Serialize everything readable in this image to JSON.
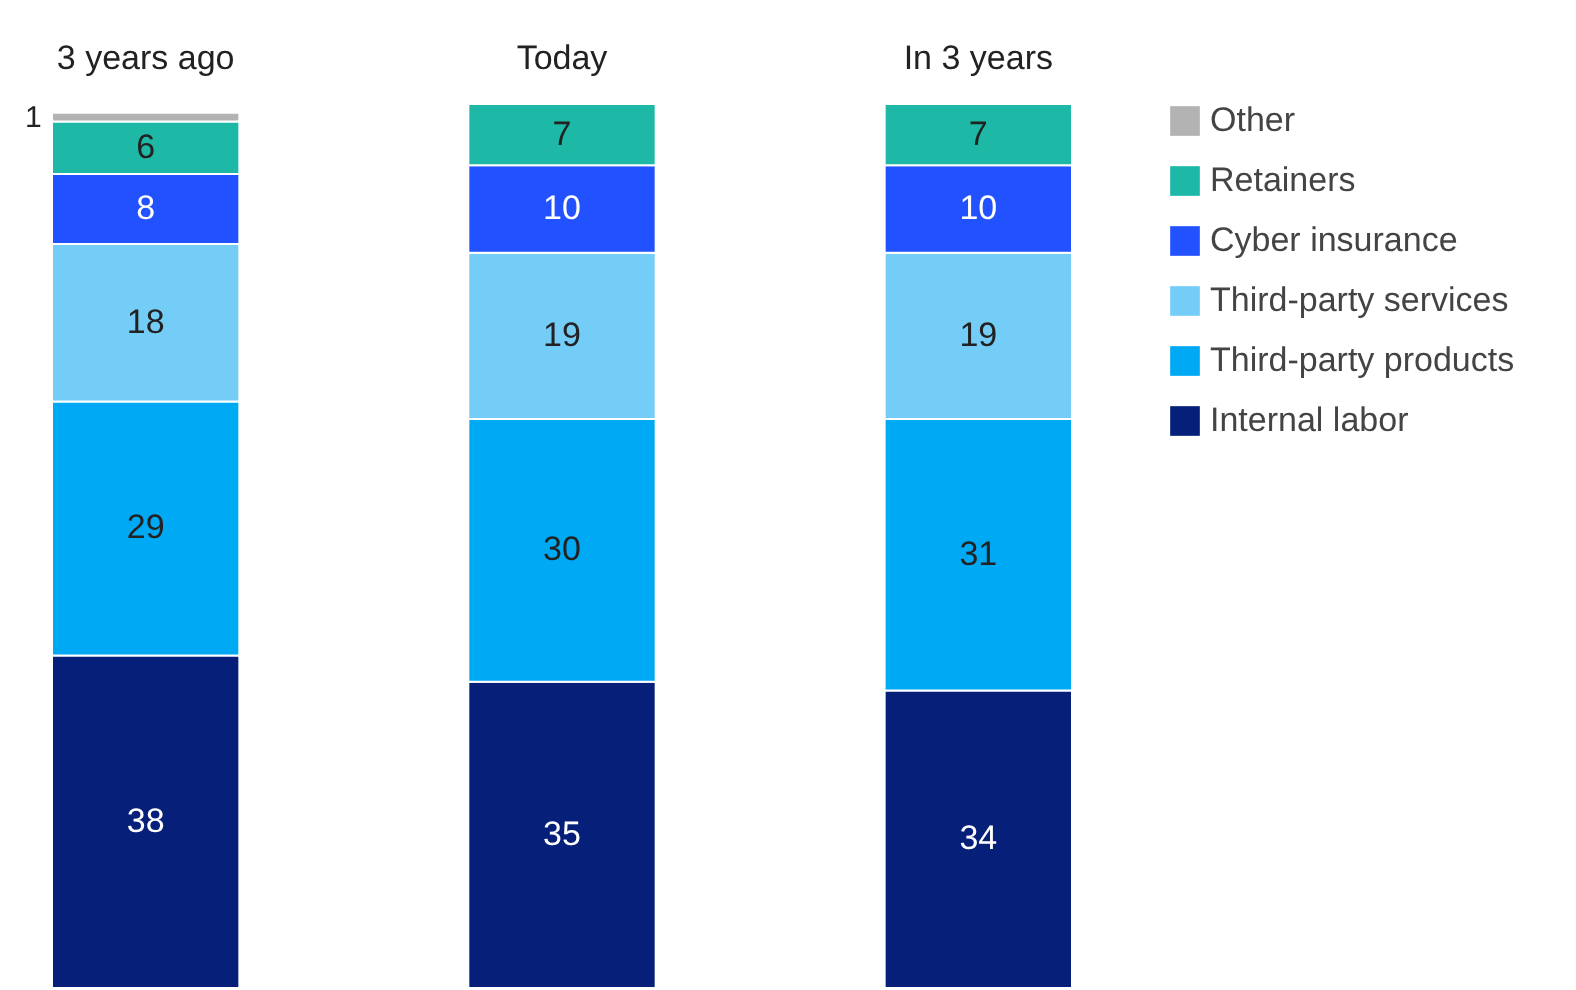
{
  "chart_data": {
    "type": "bar",
    "stacked": true,
    "data_labels": true,
    "legend": "top right",
    "grid": false,
    "categories": [
      "3 years ago",
      "Today",
      "In 3 years"
    ],
    "series": [
      {
        "name": "Internal labor",
        "color": "#061f79",
        "values": [
          38,
          35,
          34
        ]
      },
      {
        "name": "Third-party products",
        "color": "#00a9f4",
        "values": [
          29,
          30,
          31
        ]
      },
      {
        "name": "Third-party services",
        "color": "#73cdf7",
        "values": [
          18,
          19,
          19
        ]
      },
      {
        "name": "Cyber insurance",
        "color": "#2251ff",
        "values": [
          8,
          10,
          10
        ]
      },
      {
        "name": "Retainers",
        "color": "#1eb8a6",
        "values": [
          6,
          7,
          7
        ]
      },
      {
        "name": "Other",
        "color": "#b3b3b3",
        "values": [
          1,
          null,
          null
        ]
      }
    ]
  }
}
